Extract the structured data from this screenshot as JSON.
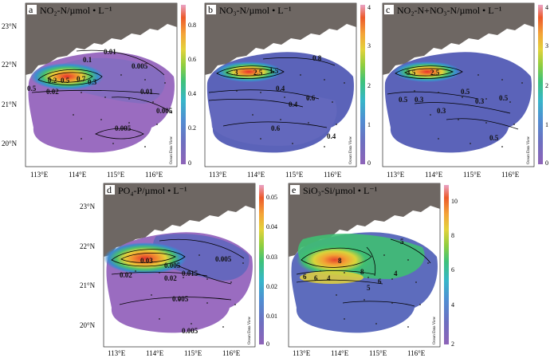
{
  "figure": {
    "lat_ticks": [
      "23°N",
      "22°N",
      "21°N",
      "20°N"
    ],
    "lon_ticks": [
      "113°E",
      "114°E",
      "115°E",
      "116°E"
    ],
    "watermark": "Ocean Data View"
  },
  "panels": [
    {
      "letter": "a",
      "title": "NO₂-N/µmol • L⁻¹",
      "colorbar_ticks": [
        "0.8",
        "0.6",
        "0.4",
        "0.2",
        "0"
      ],
      "contour_labels": [
        "0.01",
        "0.005",
        "0.1",
        "0.2",
        "0.5",
        "0.7",
        "0.3",
        "0.02",
        "0.5",
        "0.01",
        "0.005",
        "0.005"
      ]
    },
    {
      "letter": "b",
      "title": "NO₃-N/µmol • L⁻¹",
      "colorbar_ticks": [
        "4",
        "3",
        "2",
        "1",
        "0"
      ],
      "contour_labels": [
        "0.8",
        "3",
        "2.5",
        "1.5",
        "0.4",
        "0.4",
        "0.6",
        "0.6",
        "0.4"
      ]
    },
    {
      "letter": "c",
      "title": "NO₂-N+NO₃-N/µmol • L⁻¹",
      "colorbar_ticks": [
        "4",
        "3",
        "2",
        "1",
        "0"
      ],
      "contour_labels": [
        "3.5",
        "2.5",
        "0.5",
        "0.3",
        "0.5",
        "0.3",
        "0.5",
        "0.3",
        "0.5"
      ]
    },
    {
      "letter": "d",
      "title": "PO₄-P/µmol • L⁻¹",
      "colorbar_ticks": [
        "0.05",
        "0.04",
        "0.03",
        "0.02",
        "0.01",
        "0"
      ],
      "contour_labels": [
        "0.03",
        "0.02",
        "0.005",
        "0.005",
        "0.015",
        "0.02",
        "0.005",
        "0.005"
      ]
    },
    {
      "letter": "e",
      "title": "SiO₃-Si/µmol • L⁻¹",
      "colorbar_ticks": [
        "10",
        "8",
        "6",
        "4",
        "2"
      ],
      "contour_labels": [
        "5",
        "8",
        "8",
        "6",
        "6",
        "4",
        "6",
        "5",
        "4"
      ]
    }
  ]
}
